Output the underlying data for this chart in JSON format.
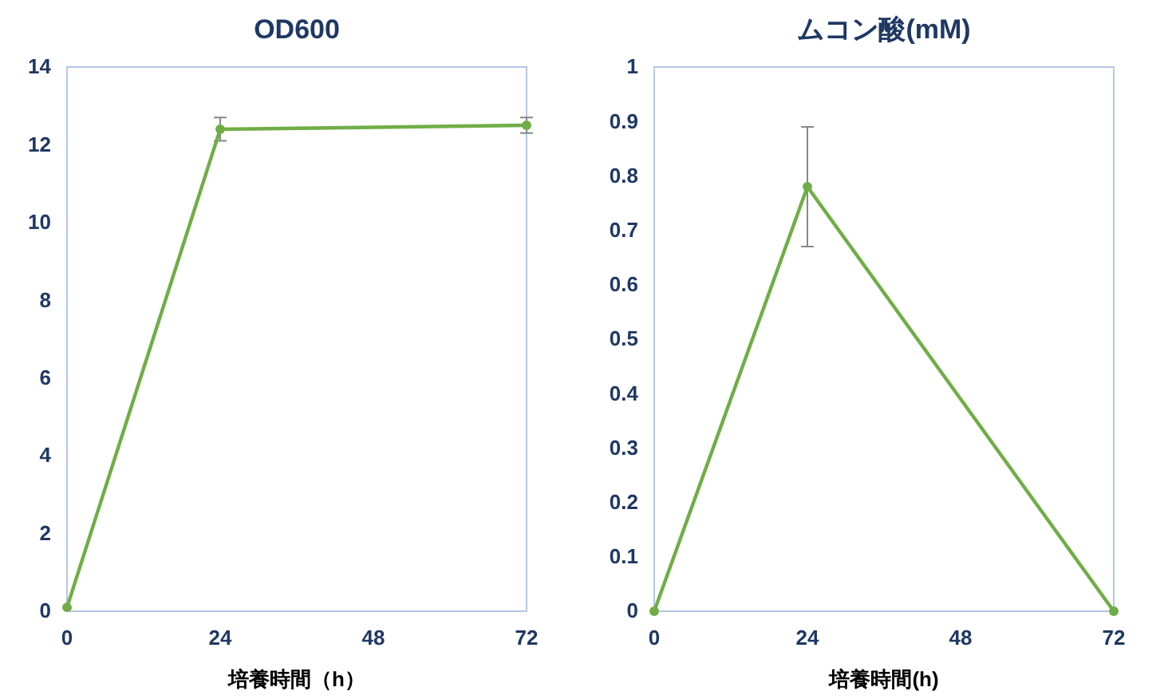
{
  "chart_data": [
    {
      "type": "line",
      "title": "OD600",
      "xlabel": "培養時間（h）",
      "x": [
        0,
        24,
        72
      ],
      "series": [
        {
          "color": "#70ad47",
          "values": [
            0.1,
            12.4,
            12.5
          ],
          "errors": [
            null,
            0.3,
            0.2
          ]
        }
      ],
      "xlim": [
        0,
        72
      ],
      "xticks": [
        0,
        24,
        48,
        72
      ],
      "ylim": [
        0,
        14
      ],
      "yticks": [
        0,
        2,
        4,
        6,
        8,
        10,
        12,
        14
      ],
      "marker": "circle",
      "grid": false
    },
    {
      "type": "line",
      "title": "ムコン酸(mM)",
      "xlabel": "培養時間(h)",
      "x": [
        0,
        24,
        72
      ],
      "series": [
        {
          "color": "#70ad47",
          "values": [
            0,
            0.78,
            0
          ],
          "errors": [
            null,
            0.11,
            null
          ]
        }
      ],
      "xlim": [
        0,
        72
      ],
      "xticks": [
        0,
        24,
        48,
        72
      ],
      "ylim": [
        0,
        1
      ],
      "yticks": [
        0,
        0.1,
        0.2,
        0.3,
        0.4,
        0.5,
        0.6,
        0.7,
        0.8,
        0.9,
        1
      ],
      "marker": "circle",
      "grid": false
    }
  ]
}
